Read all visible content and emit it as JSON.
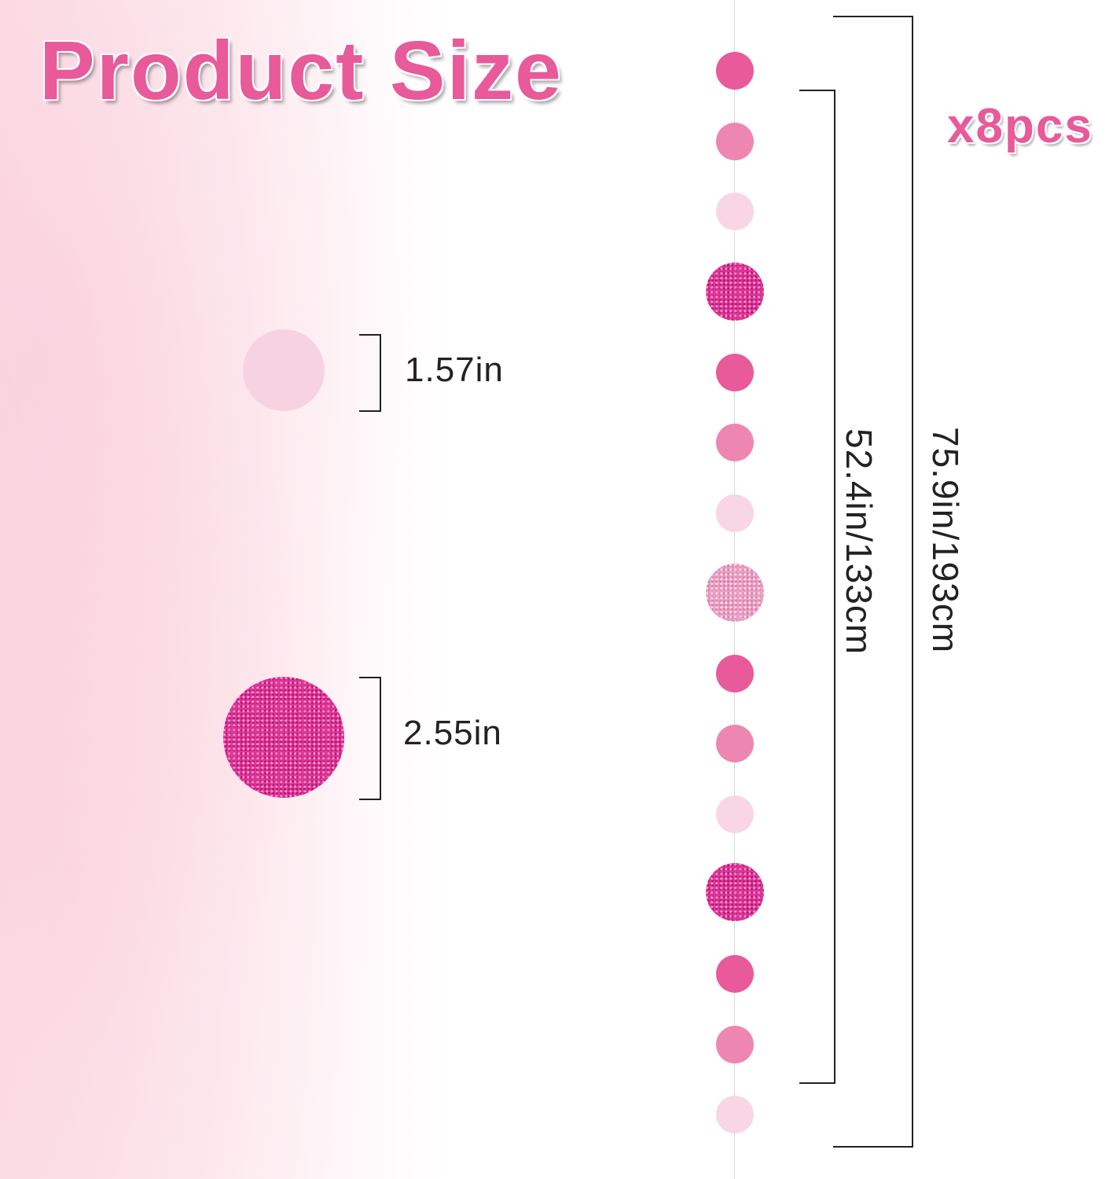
{
  "title": "Product Size",
  "quantity": "x8pcs",
  "small_circle": {
    "label": "1.57in",
    "color": "#f7d3e2"
  },
  "large_circle": {
    "label": "2.55in",
    "style": "glitter",
    "color": "#e0359a"
  },
  "inner_length": "52.4in/133cm",
  "outer_length": "75.9in/193cm",
  "garland_colors": {
    "dark": "#e85a9a",
    "medium": "#ee86b2",
    "light": "#f8d6e4",
    "glitter": "#e0359a",
    "glitter_light": "#e9a2c3"
  },
  "garland": [
    "dark",
    "medium",
    "light",
    "glitter",
    "dark",
    "medium",
    "light",
    "glitter_light",
    "dark",
    "medium",
    "light",
    "glitter",
    "dark",
    "medium",
    "light"
  ]
}
